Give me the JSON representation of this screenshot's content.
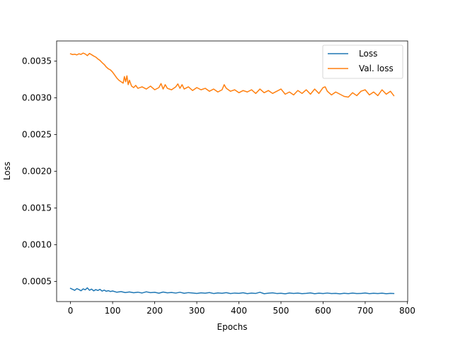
{
  "chart_data": {
    "type": "line",
    "title": "",
    "xlabel": "Epochs",
    "ylabel": "Loss",
    "xlim": [
      -33,
      801
    ],
    "ylim": [
      0.000225,
      0.003775
    ],
    "xticks": [
      0,
      100,
      200,
      300,
      400,
      500,
      600,
      700,
      800
    ],
    "xtick_labels": [
      "0",
      "100",
      "200",
      "300",
      "400",
      "500",
      "600",
      "700",
      "800"
    ],
    "yticks": [
      0.0005,
      0.001,
      0.0015,
      0.002,
      0.0025,
      0.003,
      0.0035
    ],
    "ytick_labels": [
      "0.0005",
      "0.0010",
      "0.0015",
      "0.0020",
      "0.0025",
      "0.0030",
      "0.0035"
    ],
    "grid": false,
    "legend_position": "upper-right",
    "series": [
      {
        "name": "Loss",
        "color": "#1f77b4",
        "x": [
          0,
          5,
          10,
          15,
          20,
          25,
          30,
          35,
          40,
          45,
          50,
          55,
          60,
          65,
          70,
          75,
          80,
          85,
          90,
          95,
          100,
          110,
          120,
          130,
          140,
          150,
          160,
          170,
          180,
          190,
          200,
          210,
          220,
          230,
          240,
          250,
          260,
          270,
          280,
          290,
          300,
          310,
          320,
          330,
          340,
          350,
          360,
          370,
          380,
          390,
          400,
          410,
          420,
          430,
          440,
          450,
          460,
          470,
          480,
          490,
          500,
          510,
          520,
          530,
          540,
          550,
          560,
          570,
          580,
          590,
          600,
          610,
          620,
          630,
          640,
          650,
          660,
          670,
          680,
          690,
          700,
          710,
          720,
          730,
          740,
          750,
          760,
          768
        ],
        "y": [
          0.000405,
          0.000392,
          0.000378,
          0.000401,
          0.000389,
          0.000372,
          0.000398,
          0.000385,
          0.000412,
          0.000379,
          0.000395,
          0.000371,
          0.000388,
          0.000376,
          0.000392,
          0.000368,
          0.000381,
          0.000365,
          0.000374,
          0.000362,
          0.000369,
          0.000352,
          0.000361,
          0.000348,
          0.000356,
          0.000345,
          0.000353,
          0.000342,
          0.000358,
          0.000346,
          0.000351,
          0.000339,
          0.000355,
          0.000344,
          0.000349,
          0.000341,
          0.000352,
          0.000338,
          0.000347,
          0.000342,
          0.000336,
          0.000344,
          0.000339,
          0.000348,
          0.000335,
          0.000343,
          0.000338,
          0.000346,
          0.000334,
          0.000341,
          0.000337,
          0.000345,
          0.000333,
          0.00034,
          0.000336,
          0.000352,
          0.000332,
          0.000339,
          0.000344,
          0.000335,
          0.000338,
          0.000331,
          0.000342,
          0.000336,
          0.00034,
          0.000333,
          0.000337,
          0.000343,
          0.000332,
          0.000339,
          0.000335,
          0.000341,
          0.000334,
          0.000337,
          0.000331,
          0.000338,
          0.000333,
          0.00034,
          0.000335,
          0.000336,
          0.000342,
          0.000333,
          0.000338,
          0.000334,
          0.000339,
          0.000332,
          0.000337,
          0.000335
        ]
      },
      {
        "name": "Val. loss",
        "color": "#ff7f0e",
        "x": [
          0,
          5,
          10,
          15,
          20,
          25,
          30,
          35,
          40,
          45,
          50,
          55,
          60,
          65,
          70,
          75,
          80,
          85,
          90,
          95,
          100,
          105,
          110,
          115,
          120,
          125,
          128,
          131,
          134,
          137,
          140,
          145,
          150,
          155,
          160,
          170,
          180,
          190,
          200,
          210,
          215,
          220,
          225,
          230,
          240,
          250,
          255,
          260,
          265,
          270,
          280,
          290,
          300,
          310,
          320,
          330,
          340,
          350,
          360,
          365,
          370,
          380,
          390,
          400,
          410,
          420,
          430,
          440,
          450,
          460,
          470,
          480,
          490,
          500,
          510,
          520,
          530,
          540,
          550,
          560,
          570,
          580,
          590,
          600,
          605,
          610,
          620,
          630,
          640,
          650,
          660,
          670,
          680,
          690,
          700,
          710,
          720,
          730,
          740,
          750,
          760,
          768
        ],
        "y": [
          0.0036,
          0.00359,
          0.003595,
          0.003585,
          0.0036,
          0.003592,
          0.00361,
          0.003598,
          0.003575,
          0.003605,
          0.003588,
          0.00357,
          0.003555,
          0.00353,
          0.00351,
          0.00348,
          0.003455,
          0.00342,
          0.003395,
          0.00338,
          0.00335,
          0.00331,
          0.00327,
          0.00324,
          0.00322,
          0.0032,
          0.00329,
          0.00322,
          0.0033,
          0.00318,
          0.00324,
          0.00316,
          0.00314,
          0.00317,
          0.00313,
          0.00315,
          0.00312,
          0.00316,
          0.00311,
          0.00314,
          0.003195,
          0.00312,
          0.00318,
          0.00313,
          0.00311,
          0.00315,
          0.00319,
          0.00313,
          0.00318,
          0.00312,
          0.00315,
          0.0031,
          0.00314,
          0.00311,
          0.00313,
          0.00309,
          0.00312,
          0.00308,
          0.00311,
          0.00318,
          0.00313,
          0.00309,
          0.00311,
          0.00307,
          0.0031,
          0.00308,
          0.00311,
          0.00306,
          0.00312,
          0.00307,
          0.0031,
          0.00306,
          0.00309,
          0.00312,
          0.00305,
          0.00308,
          0.00304,
          0.0031,
          0.00306,
          0.00311,
          0.00305,
          0.00312,
          0.00306,
          0.00314,
          0.00315,
          0.00309,
          0.00304,
          0.00308,
          0.00305,
          0.00302,
          0.00301,
          0.00307,
          0.00303,
          0.00309,
          0.00311,
          0.00304,
          0.00308,
          0.00303,
          0.00311,
          0.00305,
          0.00309,
          0.00303
        ]
      }
    ]
  }
}
